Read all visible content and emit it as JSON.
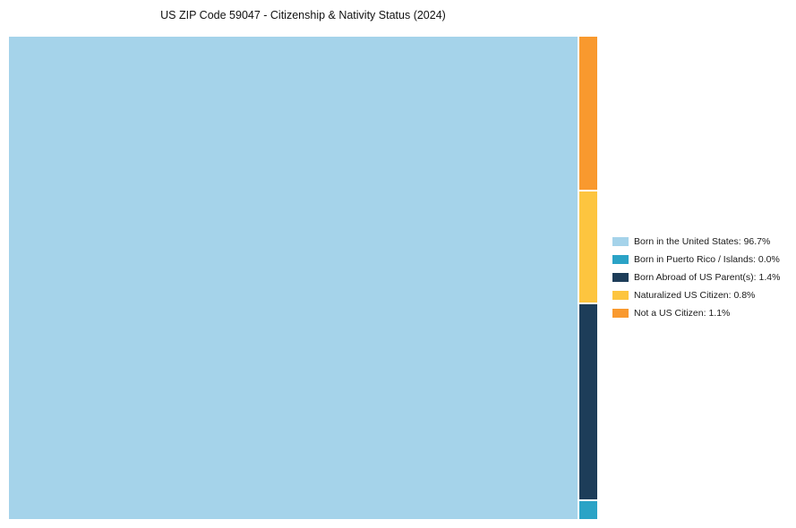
{
  "title": "US ZIP Code 59047 - Citizenship & Nativity Status (2024)",
  "chart_data": {
    "type": "treemap",
    "title": "US ZIP Code 59047 - Citizenship & Nativity Status (2024)",
    "unit": "%",
    "legend_position": "right",
    "items": [
      {
        "label": "Born in the United States",
        "value": 96.7,
        "color": "#a5d3ea"
      },
      {
        "label": "Born in Puerto Rico / Islands",
        "value": 0.0,
        "color": "#2ba3c6"
      },
      {
        "label": "Born Abroad of US Parent(s)",
        "value": 1.4,
        "color": "#1d3d59"
      },
      {
        "label": "Naturalized US Citizen",
        "value": 0.8,
        "color": "#fdc53f"
      },
      {
        "label": "Not a US Citizen",
        "value": 1.1,
        "color": "#f9992e"
      }
    ],
    "strip_top_to_bottom": [
      "Not a US Citizen",
      "Naturalized US Citizen",
      "Born Abroad of US Parent(s)",
      "Born in Puerto Rico / Islands"
    ]
  }
}
